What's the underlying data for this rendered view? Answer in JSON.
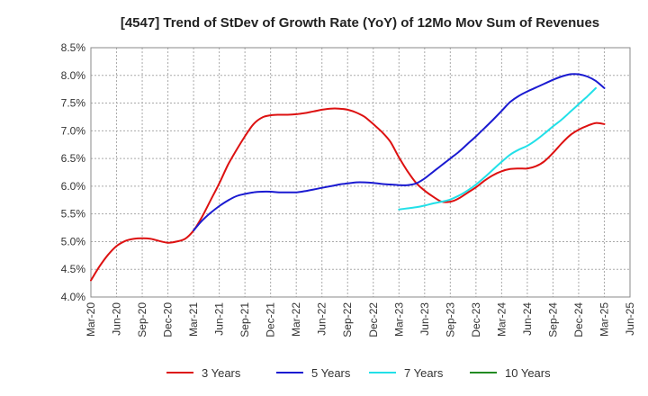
{
  "chart_data": {
    "type": "line",
    "title": "[4547]  Trend of StDev of Growth Rate (YoY) of 12Mo Mov Sum of Revenues",
    "xlabel": "",
    "ylabel": "",
    "y_ticks": [
      "4.0%",
      "4.5%",
      "5.0%",
      "5.5%",
      "6.0%",
      "6.5%",
      "7.0%",
      "7.5%",
      "8.0%",
      "8.5%"
    ],
    "ylim": [
      4.0,
      8.5
    ],
    "x_ticks": [
      "Mar-20",
      "Jun-20",
      "Sep-20",
      "Dec-20",
      "Mar-21",
      "Jun-21",
      "Sep-21",
      "Dec-21",
      "Mar-22",
      "Jun-22",
      "Sep-22",
      "Dec-22",
      "Mar-23",
      "Jun-23",
      "Sep-23",
      "Dec-23",
      "Mar-24",
      "Jun-24",
      "Sep-24",
      "Dec-24",
      "Mar-25",
      "Jun-25"
    ],
    "grid": true,
    "legend_position": "bottom",
    "series": [
      {
        "name": "3 Years",
        "color": "#dd1111",
        "start_index": 0,
        "values": [
          4.3,
          4.55,
          4.76,
          4.92,
          5.01,
          5.05,
          5.06,
          5.05,
          5.01,
          4.98,
          5.0,
          5.05,
          5.2,
          5.45,
          5.75,
          6.05,
          6.38,
          6.65,
          6.9,
          7.12,
          7.24,
          7.28,
          7.29,
          7.29,
          7.3,
          7.32,
          7.35,
          7.38,
          7.4,
          7.4,
          7.38,
          7.33,
          7.25,
          7.12,
          6.98,
          6.8,
          6.52,
          6.27,
          6.06,
          5.92,
          5.81,
          5.72,
          5.72,
          5.78,
          5.88,
          5.98,
          6.1,
          6.2,
          6.27,
          6.31,
          6.32,
          6.32,
          6.36,
          6.45,
          6.6,
          6.77,
          6.92,
          7.02,
          7.09,
          7.14,
          7.12
        ]
      },
      {
        "name": "5 Years",
        "color": "#1a1ad1",
        "start_index": 12,
        "values": [
          5.2,
          5.38,
          5.52,
          5.64,
          5.74,
          5.82,
          5.86,
          5.89,
          5.9,
          5.9,
          5.89,
          5.89,
          5.89,
          5.91,
          5.94,
          5.97,
          6.0,
          6.03,
          6.05,
          6.07,
          6.07,
          6.06,
          6.04,
          6.03,
          6.02,
          6.02,
          6.05,
          6.14,
          6.26,
          6.38,
          6.5,
          6.62,
          6.76,
          6.9,
          7.05,
          7.2,
          7.36,
          7.52,
          7.63,
          7.71,
          7.78,
          7.85,
          7.92,
          7.98,
          8.02,
          8.02,
          7.98,
          7.9,
          7.77
        ]
      },
      {
        "name": "7 Years",
        "color": "#22e0e8",
        "start_index": 36,
        "values": [
          5.58,
          5.6,
          5.62,
          5.65,
          5.69,
          5.72,
          5.76,
          5.83,
          5.92,
          6.03,
          6.16,
          6.3,
          6.44,
          6.57,
          6.66,
          6.73,
          6.83,
          6.95,
          7.08,
          7.2,
          7.34,
          7.48,
          7.62,
          7.77
        ]
      },
      {
        "name": "10 Years",
        "color": "#228b22",
        "start_index": 0,
        "values": []
      }
    ]
  }
}
